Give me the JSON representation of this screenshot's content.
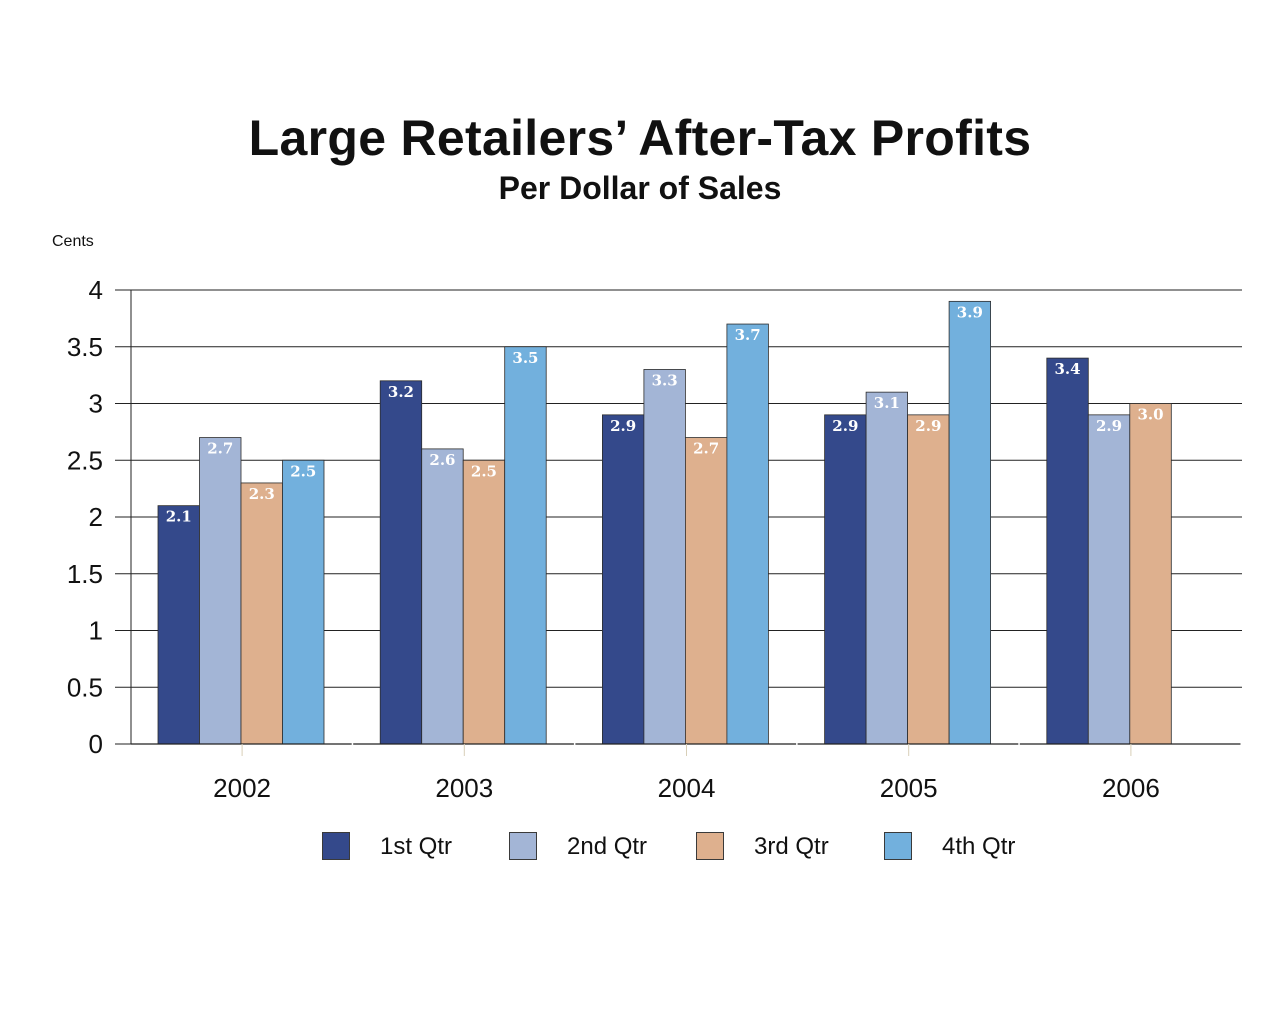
{
  "chart_data": {
    "type": "bar",
    "title": "Large Retailers’ After-Tax Profits",
    "subtitle": "Per Dollar of Sales",
    "ylabel": "Cents",
    "xlabel": "",
    "ylim": [
      0,
      4
    ],
    "yticks": [
      "0",
      "0.5",
      "1",
      "1.5",
      "2",
      "2.5",
      "3",
      "3.5",
      "4"
    ],
    "grid": true,
    "legend_position": "bottom",
    "categories": [
      "2002",
      "2003",
      "2004",
      "2005",
      "2006"
    ],
    "series": [
      {
        "name": "1st Qtr",
        "color": "#34498B",
        "values": [
          2.1,
          3.2,
          2.9,
          2.9,
          3.4
        ],
        "labels": [
          "2.1",
          "3.2",
          "2.9",
          "2.9",
          "3.4"
        ]
      },
      {
        "name": "2nd Qtr",
        "color": "#A3B5D6",
        "values": [
          2.7,
          2.6,
          3.3,
          3.1,
          2.9
        ],
        "labels": [
          "2.7",
          "2.6",
          "3.3",
          "3.1",
          "2.9"
        ]
      },
      {
        "name": "3rd Qtr",
        "color": "#DEB08E",
        "values": [
          2.3,
          2.5,
          2.7,
          2.9,
          3.0
        ],
        "labels": [
          "2.3",
          "2.5",
          "2.7",
          "2.9",
          "3.0"
        ]
      },
      {
        "name": "4th Qtr",
        "color": "#72B0DD",
        "values": [
          2.5,
          3.5,
          3.7,
          3.9,
          null
        ],
        "labels": [
          "2.5",
          "3.5",
          "3.7",
          "3.9",
          ""
        ]
      }
    ]
  }
}
